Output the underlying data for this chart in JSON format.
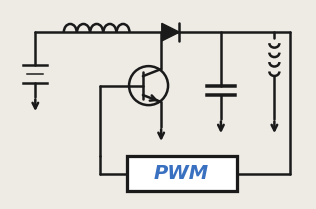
{
  "bg_color": "#eeebe5",
  "line_color": "#1a1a1a",
  "pwm_fill": "#ffffff",
  "pwm_text_color": "#3a70c0",
  "pwm_border_color": "#1a1a1a",
  "line_width": 1.8,
  "fig_width": 3.16,
  "fig_height": 2.09,
  "dpi": 100
}
